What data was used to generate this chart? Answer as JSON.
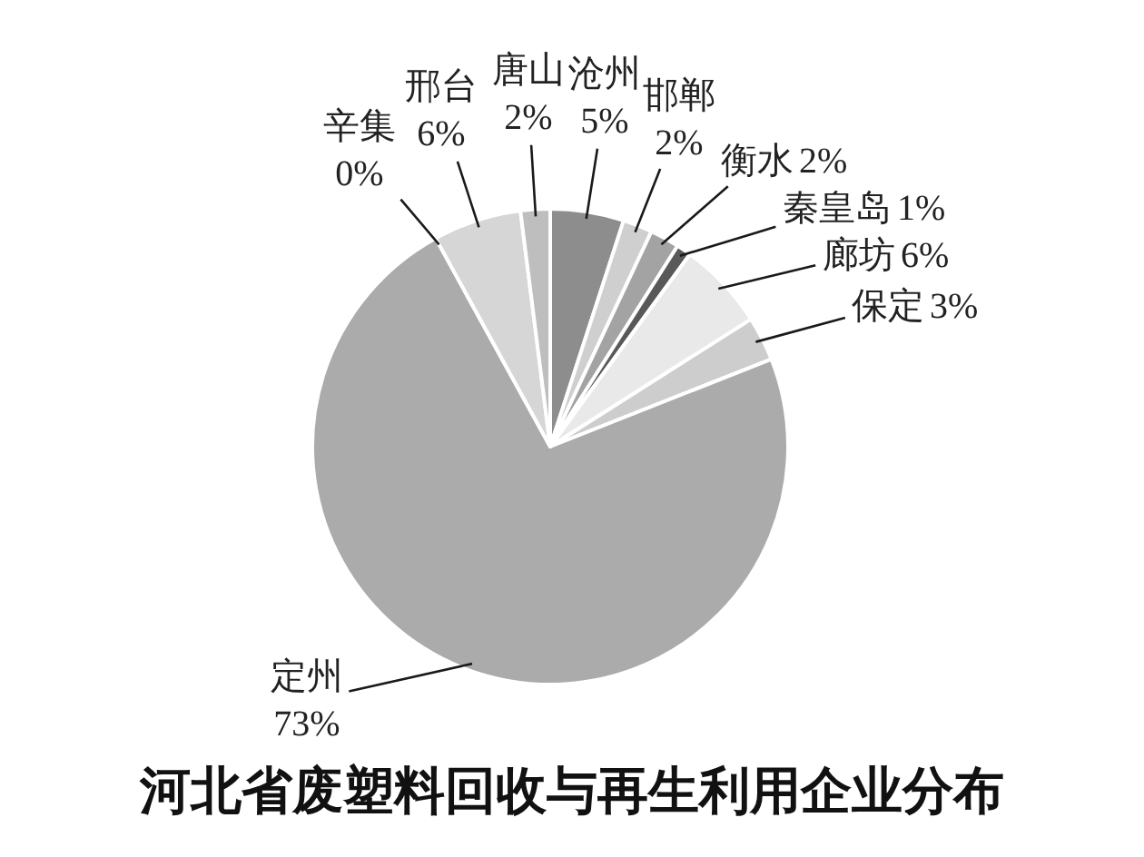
{
  "chart_data": {
    "type": "pie",
    "title": "河北省废塑料回收与再生利用企业分布",
    "categories": [
      "沧州",
      "邯郸",
      "衡水",
      "秦皇岛",
      "廊坊",
      "保定",
      "定州",
      "辛集",
      "邢台",
      "唐山"
    ],
    "values": [
      5,
      2,
      2,
      1,
      6,
      3,
      73,
      0,
      6,
      2
    ],
    "value_labels": [
      "5%",
      "2%",
      "2%",
      "1%",
      "6%",
      "3%",
      "73%",
      "0%",
      "6%",
      "2%"
    ],
    "colors": [
      "#8d8d8d",
      "#cfcfcf",
      "#a3a3a3",
      "#595959",
      "#e9e9e9",
      "#cdcdcd",
      "#ababab",
      "#ffffff",
      "#d6d6d6",
      "#bebebe"
    ]
  }
}
